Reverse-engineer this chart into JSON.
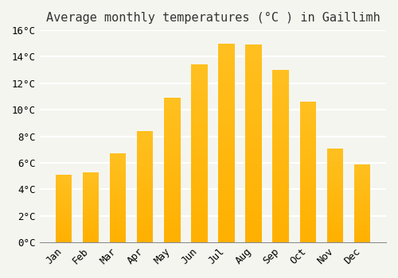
{
  "title": "Average monthly temperatures (°C ) in Gaillimh",
  "months": [
    "Jan",
    "Feb",
    "Mar",
    "Apr",
    "May",
    "Jun",
    "Jul",
    "Aug",
    "Sep",
    "Oct",
    "Nov",
    "Dec"
  ],
  "values": [
    5.1,
    5.3,
    6.7,
    8.4,
    10.9,
    13.4,
    15.0,
    14.9,
    13.0,
    10.6,
    7.1,
    5.9
  ],
  "bar_color_top": "#FFC020",
  "bar_color_bottom": "#FFB000",
  "ylim": [
    0,
    16
  ],
  "yticks": [
    0,
    2,
    4,
    6,
    8,
    10,
    12,
    14,
    16
  ],
  "background_color": "#F5F5F0",
  "grid_color": "#FFFFFF",
  "title_fontsize": 11,
  "tick_fontsize": 9,
  "bar_width": 0.6
}
